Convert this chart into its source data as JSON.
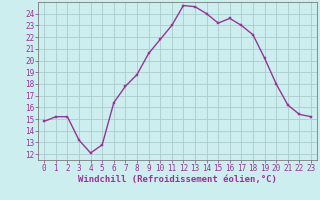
{
  "x": [
    0,
    1,
    2,
    3,
    4,
    5,
    6,
    7,
    8,
    9,
    10,
    11,
    12,
    13,
    14,
    15,
    16,
    17,
    18,
    19,
    20,
    21,
    22,
    23
  ],
  "y": [
    14.8,
    15.2,
    15.2,
    13.2,
    12.1,
    12.8,
    16.4,
    17.8,
    18.8,
    20.6,
    21.8,
    23.0,
    24.7,
    24.6,
    24.0,
    23.2,
    23.6,
    23.0,
    22.2,
    20.2,
    18.0,
    16.2,
    15.4,
    15.2
  ],
  "line_color": "#993399",
  "marker_color": "#993399",
  "bg_color": "#cceeee",
  "grid_color": "#aacccc",
  "xlabel": "Windchill (Refroidissement éolien,°C)",
  "tick_color": "#993399",
  "xlabel_color": "#993399",
  "yticks": [
    12,
    13,
    14,
    15,
    16,
    17,
    18,
    19,
    20,
    21,
    22,
    23,
    24
  ],
  "xticks": [
    0,
    1,
    2,
    3,
    4,
    5,
    6,
    7,
    8,
    9,
    10,
    11,
    12,
    13,
    14,
    15,
    16,
    17,
    18,
    19,
    20,
    21,
    22,
    23
  ],
  "ylim": [
    11.5,
    25.0
  ],
  "xlim": [
    -0.5,
    23.5
  ],
  "tick_fontsize": 5.5,
  "xlabel_fontsize": 6.5
}
